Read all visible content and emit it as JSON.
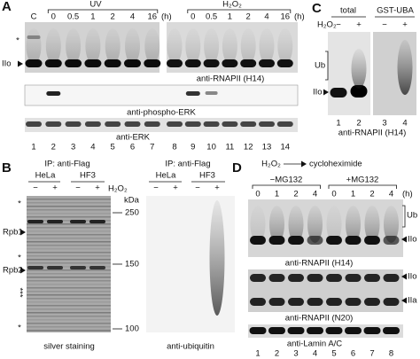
{
  "panel_a": {
    "label": "A",
    "uv": "UV",
    "h2o2": "H₂O₂",
    "uv_lanes": [
      "C",
      "0",
      "0.5",
      "1",
      "2",
      "4",
      "16"
    ],
    "h2o2_lanes": [
      "0",
      "0.5",
      "1",
      "2",
      "4",
      "16"
    ],
    "units": [
      "(h)",
      "(h)"
    ],
    "star": "*",
    "band": "IIo",
    "blots": [
      "anti-RNAPII (H14)",
      "anti-phospho-ERK",
      "anti-ERK"
    ],
    "lanes": [
      "1",
      "2",
      "3",
      "4",
      "5",
      "6",
      "7",
      "8",
      "9",
      "10",
      "11",
      "12",
      "13",
      "14"
    ]
  },
  "panel_b": {
    "label": "B",
    "ip": [
      "IP: anti-Flag",
      "IP: anti-Flag"
    ],
    "cells": [
      "HeLa",
      "HF3",
      "HeLa",
      "HF3"
    ],
    "signs": [
      "−",
      "+",
      "−",
      "+",
      "−",
      "+",
      "−",
      "+"
    ],
    "h2o2": "H₂O₂",
    "kda": "kDa",
    "markers": [
      "250",
      "150",
      "100"
    ],
    "proteins": [
      "Rpb1",
      "Rpb2"
    ],
    "stars": [
      "*",
      "*",
      "***",
      "*"
    ],
    "captions": [
      "silver staining",
      "anti-ubiquitin"
    ]
  },
  "panel_c": {
    "label": "C",
    "groups": [
      "total",
      "GST-UBA"
    ],
    "h2o2": "H₂O₂",
    "signs": [
      "−",
      "+",
      "−",
      "+"
    ],
    "bands": [
      "Ub",
      "IIo"
    ],
    "blot": "anti-RNAPII (H14)",
    "lanes": [
      "1",
      "2",
      "3",
      "4"
    ]
  },
  "panel_d": {
    "label": "D",
    "h2o2": "H₂O₂",
    "chase": "cycloheximide",
    "groups": [
      "−MG132",
      "+MG132"
    ],
    "times": [
      "0",
      "1",
      "2",
      "4",
      "0",
      "1",
      "2",
      "4"
    ],
    "unit": "(h)",
    "blot1_bands": [
      "Ub",
      "IIo"
    ],
    "blot2_bands": [
      "IIo",
      "IIa"
    ],
    "blots": [
      "anti-RNAPII (H14)",
      "anti-RNAPII (N20)",
      "anti-Lamin A/C"
    ],
    "lanes": [
      "1",
      "2",
      "3",
      "4",
      "5",
      "6",
      "7",
      "8"
    ]
  }
}
